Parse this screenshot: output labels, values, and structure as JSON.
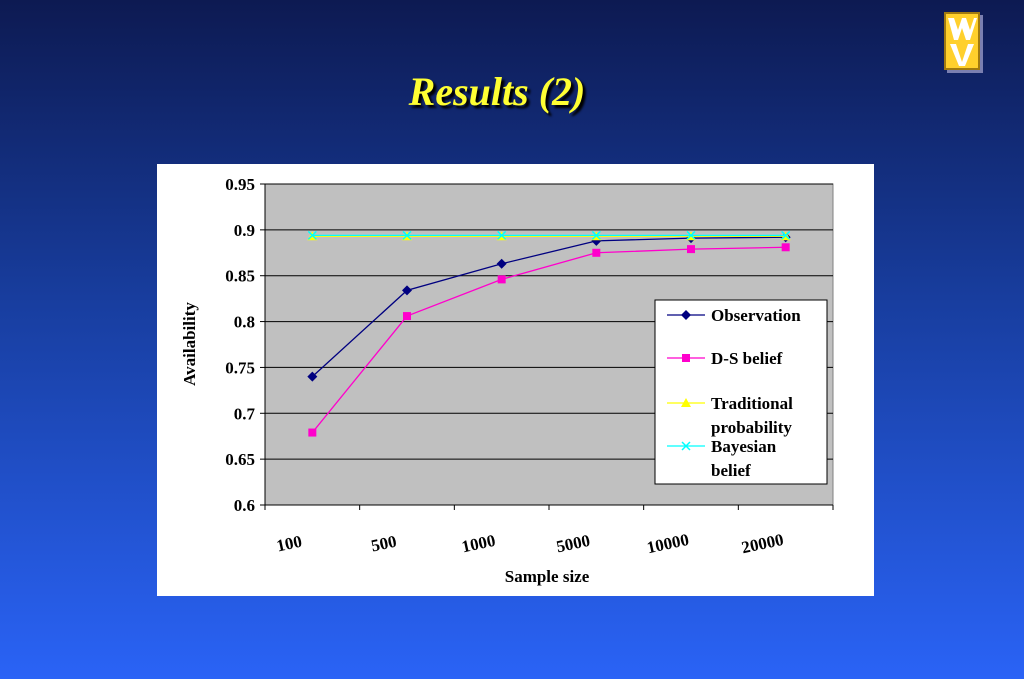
{
  "slide": {
    "title": "Results (2)"
  },
  "logo": {
    "icon": "wv-logo-icon"
  },
  "colors": {
    "title": "#ffff33",
    "plot_background": "#c0c0c0",
    "observation": "#000080",
    "ds_belief": "#ff00cc",
    "traditional_probability": "#ffff00",
    "bayesian_belief": "#00ffff"
  },
  "chart_data": {
    "type": "line",
    "xlabel": "Sample size",
    "ylabel": "Availability",
    "categories": [
      "100",
      "500",
      "1000",
      "5000",
      "10000",
      "20000"
    ],
    "ylim": [
      0.6,
      0.95
    ],
    "yticks": [
      "0.95",
      "0.9",
      "0.85",
      "0.8",
      "0.75",
      "0.7",
      "0.65",
      "0.6"
    ],
    "grid": true,
    "legend_position": "right",
    "series": [
      {
        "name": "Observation",
        "marker": "diamond",
        "color": "#000080",
        "values": [
          0.74,
          0.834,
          0.863,
          0.888,
          0.891,
          0.892
        ]
      },
      {
        "name": "D-S belief",
        "marker": "square",
        "color": "#ff00cc",
        "values": [
          0.679,
          0.806,
          0.846,
          0.875,
          0.879,
          0.881
        ]
      },
      {
        "name": "Traditional probability",
        "legend_lines": [
          "Traditional",
          "probability"
        ],
        "marker": "triangle",
        "color": "#ffff00",
        "values": [
          0.893,
          0.893,
          0.893,
          0.893,
          0.893,
          0.893
        ]
      },
      {
        "name": "Bayesian belief",
        "legend_lines": [
          "Bayesian",
          "belief"
        ],
        "marker": "x",
        "color": "#00ffff",
        "values": [
          0.894,
          0.894,
          0.894,
          0.894,
          0.894,
          0.894
        ]
      }
    ]
  }
}
